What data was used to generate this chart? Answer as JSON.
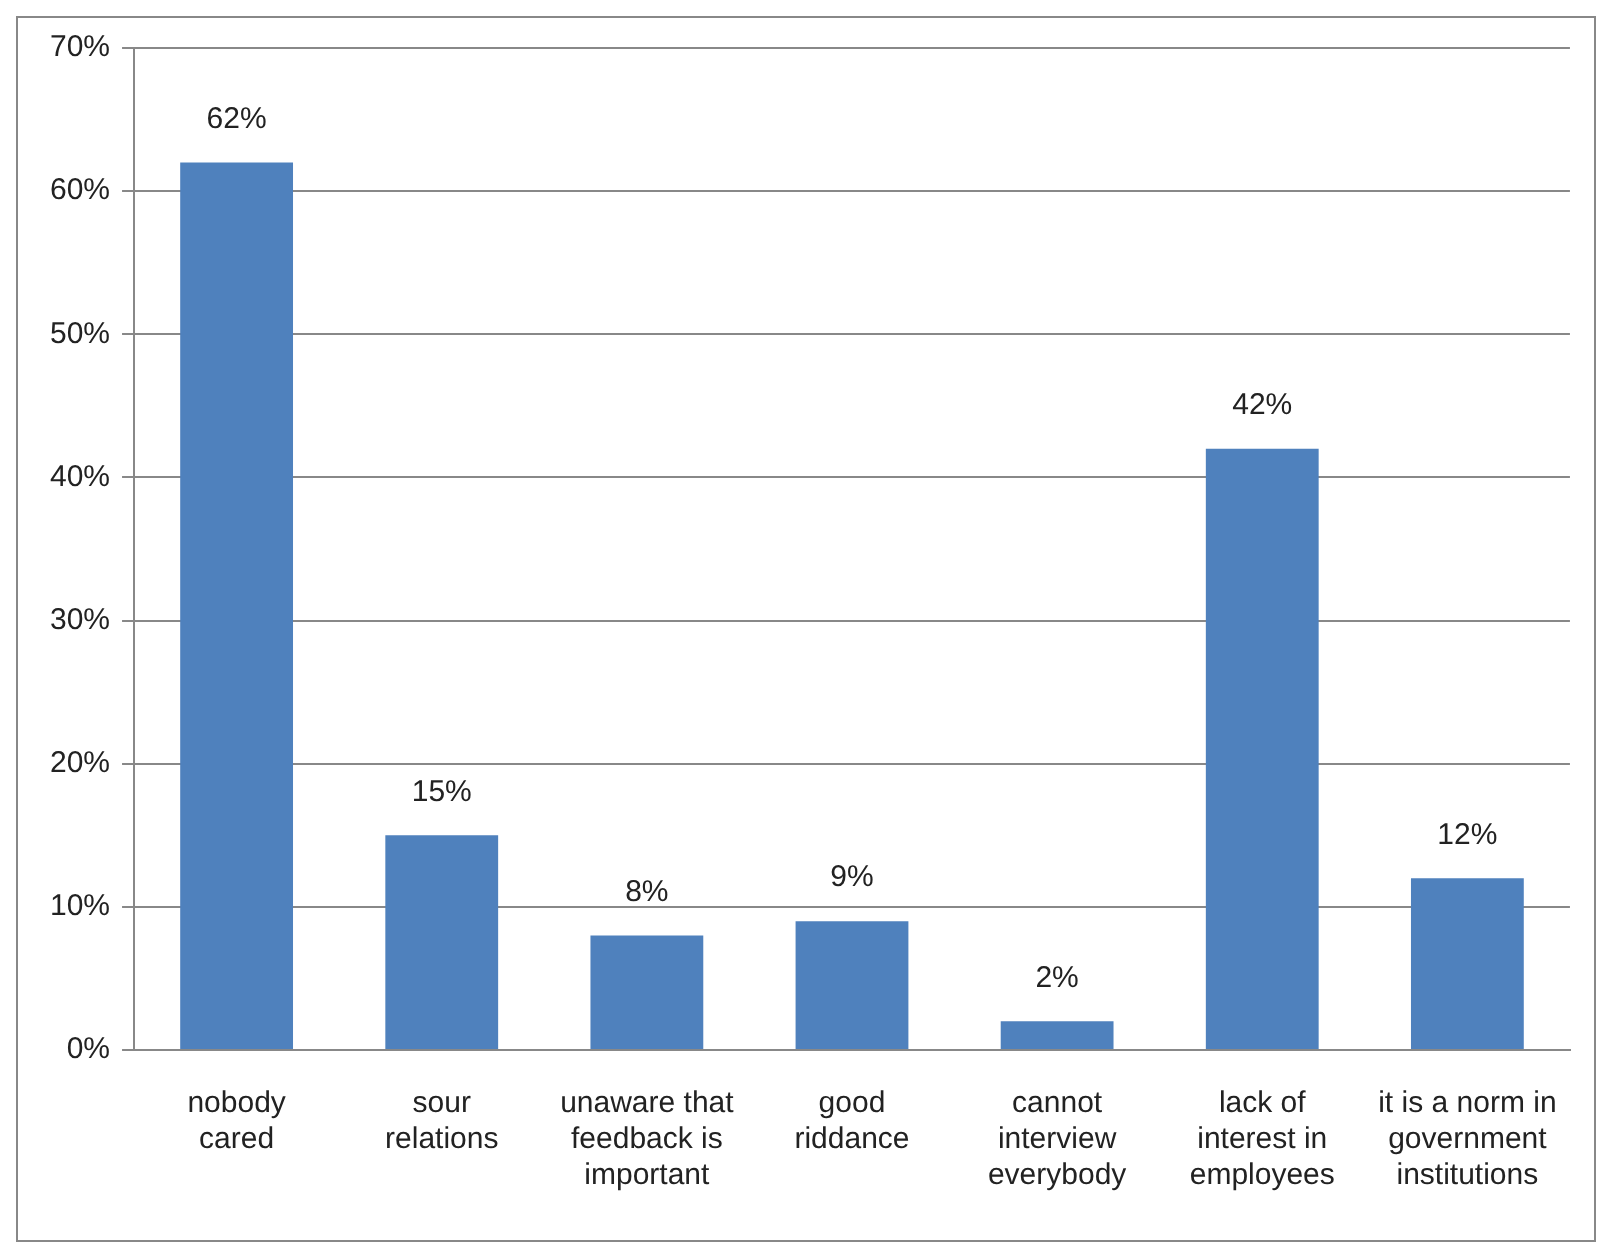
{
  "chart_data": {
    "type": "bar",
    "categories": [
      "nobody cared",
      "sour relations",
      "unaware that feedback is important",
      "good riddance",
      "cannot interview everybody",
      "lack of interest in employees",
      "it is a norm in government institutions"
    ],
    "values": [
      62,
      15,
      8,
      9,
      2,
      42,
      12
    ],
    "value_labels": [
      "62%",
      "15%",
      "8%",
      "9%",
      "2%",
      "42%",
      "12%"
    ],
    "color": "#4f81bd",
    "ylim": [
      0,
      70
    ],
    "yticks": [
      {
        "value": 0,
        "label": "0%"
      },
      {
        "value": 10,
        "label": "10%"
      },
      {
        "value": 20,
        "label": "20%"
      },
      {
        "value": 30,
        "label": "30%"
      },
      {
        "value": 40,
        "label": "40%"
      },
      {
        "value": 50,
        "label": "50%"
      },
      {
        "value": 60,
        "label": "60%"
      },
      {
        "value": 70,
        "label": "70%"
      }
    ],
    "grid": "y"
  }
}
